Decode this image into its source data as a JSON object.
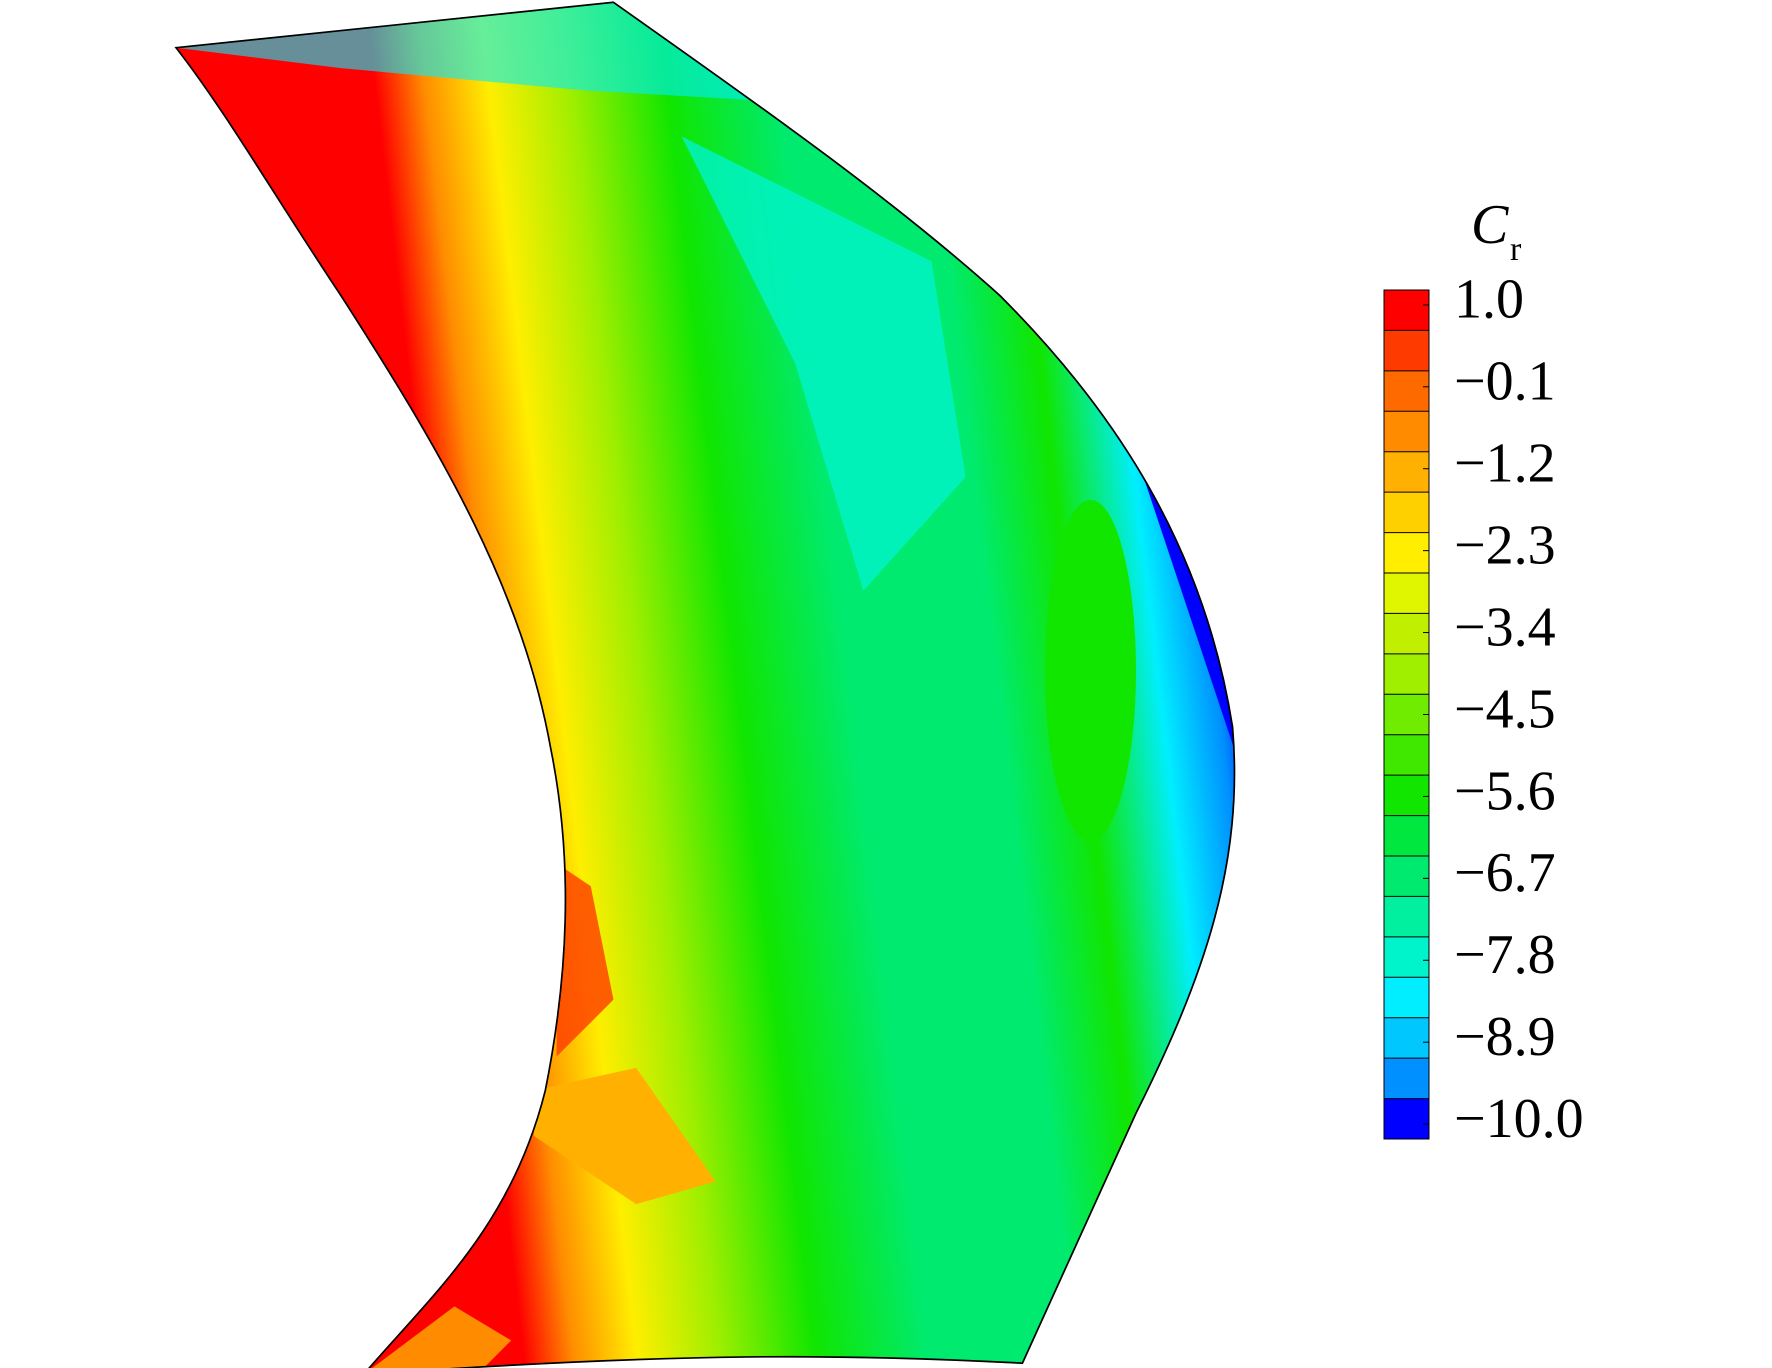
{
  "chart_data": {
    "type": "contour",
    "title": "C",
    "title_subscript": "r",
    "clim": [
      -10.2,
      1.2
    ],
    "cticks": [
      {
        "value": 1.0,
        "label": "1.0"
      },
      {
        "value": -0.1,
        "label": "−0.1"
      },
      {
        "value": -1.2,
        "label": "−1.2"
      },
      {
        "value": -2.3,
        "label": "−2.3"
      },
      {
        "value": -3.4,
        "label": "−3.4"
      },
      {
        "value": -4.5,
        "label": "−4.5"
      },
      {
        "value": -5.6,
        "label": "−5.6"
      },
      {
        "value": -6.7,
        "label": "−6.7"
      },
      {
        "value": -7.8,
        "label": "−7.8"
      },
      {
        "value": -8.9,
        "label": "−8.9"
      },
      {
        "value": -10.0,
        "label": "−10.0"
      }
    ],
    "colors": [
      "#ff0000",
      "#ff3a00",
      "#ff6a00",
      "#ff8c00",
      "#ffb000",
      "#ffd000",
      "#ffee00",
      "#e0f500",
      "#c0f000",
      "#a0ee00",
      "#70ec00",
      "#40e800",
      "#10e600",
      "#00e840",
      "#00ea70",
      "#00f0a0",
      "#00f4cc",
      "#00eeff",
      "#00c8ff",
      "#0090ff",
      "#0000ff"
    ]
  }
}
